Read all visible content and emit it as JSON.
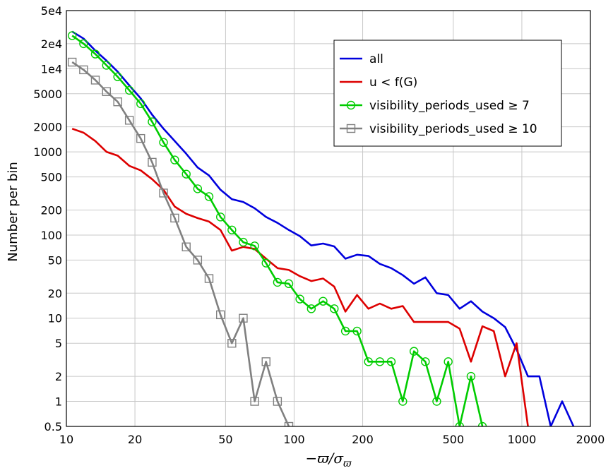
{
  "chart_data": {
    "type": "line",
    "title": "",
    "xlabel": "−ϖ/σ_ϖ",
    "ylabel": "Number per bin",
    "xscale": "log",
    "yscale": "log",
    "xlim": [
      10,
      2000
    ],
    "ylim": [
      0.5,
      50000
    ],
    "grid": true,
    "legend_position": "top-right",
    "x_ticks": [
      {
        "value": 10,
        "label": "10"
      },
      {
        "value": 20,
        "label": "20"
      },
      {
        "value": 50,
        "label": "50"
      },
      {
        "value": 100,
        "label": "100"
      },
      {
        "value": 200,
        "label": "200"
      },
      {
        "value": 500,
        "label": "500"
      },
      {
        "value": 1000,
        "label": "1000"
      },
      {
        "value": 2000,
        "label": "2000"
      }
    ],
    "y_ticks": [
      {
        "value": 0.5,
        "label": "0.5"
      },
      {
        "value": 1,
        "label": "1"
      },
      {
        "value": 2,
        "label": "2"
      },
      {
        "value": 5,
        "label": "5"
      },
      {
        "value": 10,
        "label": "10"
      },
      {
        "value": 20,
        "label": "20"
      },
      {
        "value": 50,
        "label": "50"
      },
      {
        "value": 100,
        "label": "100"
      },
      {
        "value": 200,
        "label": "200"
      },
      {
        "value": 500,
        "label": "500"
      },
      {
        "value": 1000,
        "label": "1000"
      },
      {
        "value": 2000,
        "label": "2000"
      },
      {
        "value": 5000,
        "label": "5000"
      },
      {
        "value": 10000,
        "label": "1e4"
      },
      {
        "value": 20000,
        "label": "2e4"
      },
      {
        "value": 50000,
        "label": "5e4"
      }
    ],
    "series": [
      {
        "name": "all",
        "color": "#0000dd",
        "marker": "none",
        "points": [
          [
            10.6,
            28000
          ],
          [
            11.9,
            23000
          ],
          [
            13.4,
            16500
          ],
          [
            15.0,
            12500
          ],
          [
            16.8,
            9200
          ],
          [
            18.9,
            6300
          ],
          [
            21.2,
            4400
          ],
          [
            23.8,
            2800
          ],
          [
            26.7,
            1900
          ],
          [
            29.9,
            1350
          ],
          [
            33.6,
            950
          ],
          [
            37.7,
            650
          ],
          [
            42.3,
            520
          ],
          [
            47.5,
            350
          ],
          [
            53.3,
            270
          ],
          [
            59.8,
            250
          ],
          [
            67.1,
            210
          ],
          [
            75.3,
            165
          ],
          [
            84.5,
            140
          ],
          [
            94.8,
            115
          ],
          [
            106,
            97
          ],
          [
            119,
            75
          ],
          [
            134,
            79
          ],
          [
            150,
            73
          ],
          [
            168,
            52
          ],
          [
            189,
            58
          ],
          [
            212,
            56
          ],
          [
            238,
            45
          ],
          [
            267,
            40
          ],
          [
            300,
            33
          ],
          [
            336,
            26
          ],
          [
            377,
            31
          ],
          [
            423,
            20
          ],
          [
            475,
            19
          ],
          [
            533,
            13
          ],
          [
            598,
            16
          ],
          [
            671,
            12
          ],
          [
            753,
            10
          ],
          [
            845,
            7.8
          ],
          [
            948,
            4.2
          ],
          [
            1064,
            2
          ],
          [
            1194,
            2
          ],
          [
            1339,
            0.5
          ],
          [
            1503,
            1
          ],
          [
            1686,
            0.5
          ]
        ]
      },
      {
        "name": "u < f(G)",
        "color": "#dd0000",
        "marker": "none",
        "points": [
          [
            10.6,
            1900
          ],
          [
            11.9,
            1700
          ],
          [
            13.4,
            1350
          ],
          [
            15.0,
            1000
          ],
          [
            16.8,
            900
          ],
          [
            18.9,
            680
          ],
          [
            21.2,
            600
          ],
          [
            23.8,
            470
          ],
          [
            26.7,
            350
          ],
          [
            29.9,
            220
          ],
          [
            33.6,
            180
          ],
          [
            37.7,
            160
          ],
          [
            42.3,
            145
          ],
          [
            47.5,
            115
          ],
          [
            53.3,
            65
          ],
          [
            59.8,
            72
          ],
          [
            67.1,
            68
          ],
          [
            75.3,
            52
          ],
          [
            84.5,
            40
          ],
          [
            94.8,
            38
          ],
          [
            106,
            32
          ],
          [
            119,
            28
          ],
          [
            134,
            30
          ],
          [
            150,
            24
          ],
          [
            168,
            12
          ],
          [
            189,
            19
          ],
          [
            212,
            13
          ],
          [
            238,
            15
          ],
          [
            267,
            13
          ],
          [
            300,
            14
          ],
          [
            336,
            9
          ],
          [
            377,
            9
          ],
          [
            423,
            9
          ],
          [
            475,
            9
          ],
          [
            533,
            7.5
          ],
          [
            598,
            3
          ],
          [
            671,
            8
          ],
          [
            753,
            7
          ],
          [
            845,
            2
          ],
          [
            948,
            5
          ],
          [
            1064,
            0.5
          ]
        ]
      },
      {
        "name": "visibility_periods_used ≥ 7",
        "color": "#00cc00",
        "marker": "circle",
        "points": [
          [
            10.6,
            25000
          ],
          [
            11.9,
            20000
          ],
          [
            13.4,
            15000
          ],
          [
            15.0,
            11000
          ],
          [
            16.8,
            8000
          ],
          [
            18.9,
            5500
          ],
          [
            21.2,
            3800
          ],
          [
            23.8,
            2300
          ],
          [
            26.7,
            1300
          ],
          [
            29.9,
            800
          ],
          [
            33.6,
            540
          ],
          [
            37.7,
            360
          ],
          [
            42.3,
            290
          ],
          [
            47.5,
            165
          ],
          [
            53.3,
            115
          ],
          [
            59.8,
            82
          ],
          [
            67.1,
            74
          ],
          [
            75.3,
            46
          ],
          [
            84.5,
            27
          ],
          [
            94.8,
            26
          ],
          [
            106,
            17
          ],
          [
            119,
            13
          ],
          [
            134,
            16
          ],
          [
            150,
            13
          ],
          [
            168,
            7
          ],
          [
            189,
            7
          ],
          [
            212,
            3
          ],
          [
            238,
            3
          ],
          [
            267,
            3
          ],
          [
            300,
            1
          ],
          [
            336,
            4
          ],
          [
            377,
            3
          ],
          [
            423,
            1
          ],
          [
            475,
            3
          ],
          [
            533,
            0.5
          ],
          [
            598,
            2
          ],
          [
            671,
            0.5
          ]
        ]
      },
      {
        "name": "visibility_periods_used ≥ 10",
        "color": "#808080",
        "marker": "square",
        "points": [
          [
            10.6,
            12000
          ],
          [
            11.9,
            9700
          ],
          [
            13.4,
            7300
          ],
          [
            15.0,
            5300
          ],
          [
            16.8,
            4000
          ],
          [
            18.9,
            2400
          ],
          [
            21.2,
            1450
          ],
          [
            23.8,
            750
          ],
          [
            26.7,
            320
          ],
          [
            29.9,
            160
          ],
          [
            33.6,
            72
          ],
          [
            37.7,
            50
          ],
          [
            42.3,
            30
          ],
          [
            47.5,
            11
          ],
          [
            53.3,
            5
          ],
          [
            59.8,
            10
          ],
          [
            67.1,
            1
          ],
          [
            75.3,
            3
          ],
          [
            84.5,
            1
          ],
          [
            94.8,
            0.5
          ]
        ]
      }
    ]
  }
}
